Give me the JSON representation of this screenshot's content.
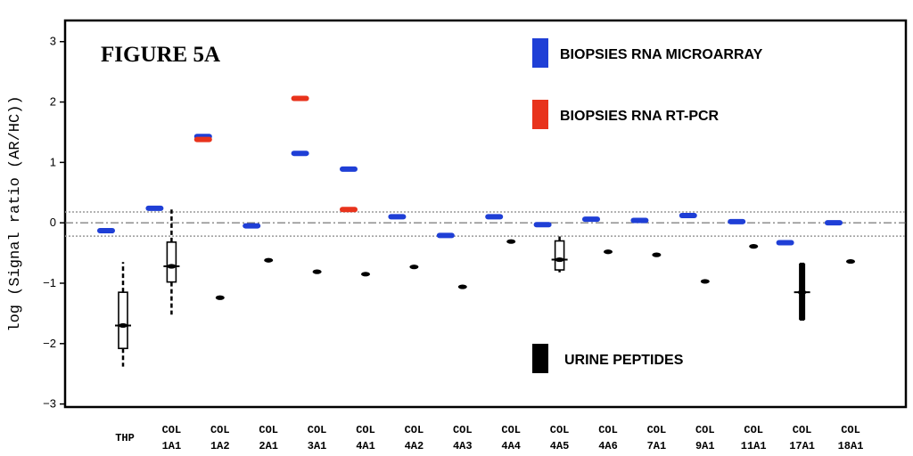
{
  "chart_data": {
    "type": "scatter",
    "title": "FIGURE 5A",
    "ylabel": "log (Signal ratio (AR/HC))",
    "xlabel": "",
    "ylim": [
      -3.05,
      3.35
    ],
    "yticks": [
      3,
      2,
      1,
      0,
      -1,
      -2,
      -3
    ],
    "threshold_lines": [
      0.18,
      0,
      -0.22
    ],
    "categories": [
      [
        "THP",
        ""
      ],
      [
        "COL",
        "1A1"
      ],
      [
        "COL",
        "1A2"
      ],
      [
        "COL",
        "2A1"
      ],
      [
        "COL",
        "3A1"
      ],
      [
        "COL",
        "4A1"
      ],
      [
        "COL",
        "4A2"
      ],
      [
        "COL",
        "4A3"
      ],
      [
        "COL",
        "4A4"
      ],
      [
        "COL",
        "4A5"
      ],
      [
        "COL",
        "4A6"
      ],
      [
        "COL",
        "7A1"
      ],
      [
        "COL",
        "9A1"
      ],
      [
        "COL",
        "11A1"
      ],
      [
        "COL",
        "17A1"
      ],
      [
        "COL",
        "18A1"
      ]
    ],
    "series": [
      {
        "name": "BIOPSIES RNA MICROARRAY",
        "color": "#1f3fd6",
        "values": [
          -0.13,
          0.24,
          1.43,
          -0.05,
          1.15,
          0.89,
          0.1,
          -0.21,
          0.1,
          -0.03,
          0.06,
          0.04,
          0.12,
          0.02,
          -0.33,
          0.0
        ]
      },
      {
        "name": "BIOPSIES RNA RT-PCR",
        "color": "#e8331c",
        "values": [
          null,
          null,
          1.38,
          null,
          2.06,
          0.22,
          null,
          null,
          null,
          null,
          null,
          null,
          null,
          null,
          null,
          null
        ]
      },
      {
        "name": "URINE PEPTIDES",
        "color": "#000000",
        "values": [
          -1.7,
          -0.72,
          -1.24,
          -0.62,
          -0.81,
          -0.85,
          -0.73,
          -1.06,
          -0.31,
          -0.61,
          -0.48,
          -0.53,
          -0.97,
          -0.39,
          -1.15,
          -0.64
        ]
      }
    ],
    "boxplots": [
      {
        "category_index": 0,
        "q1": -2.08,
        "q3": -1.15,
        "median": -1.7,
        "whisker_low": -2.38,
        "whisker_high": -0.65,
        "style": "dashed"
      },
      {
        "category_index": 1,
        "q1": -0.98,
        "q3": -0.32,
        "median": -0.72,
        "whisker_low": -1.52,
        "whisker_high": 0.22,
        "style": "dashed"
      },
      {
        "category_index": 9,
        "q1": -0.78,
        "q3": -0.3,
        "median": -0.61,
        "whisker_low": -0.82,
        "whisker_high": -0.22,
        "style": "dashed"
      },
      {
        "category_index": 14,
        "q1": -1.6,
        "q3": -0.68,
        "median": -1.15,
        "whisker_low": -1.62,
        "whisker_high": -0.66,
        "style": "solid"
      }
    ],
    "legend": {
      "placement": "right",
      "entries": [
        "BIOPSIES RNA MICROARRAY",
        "BIOPSIES RNA RT-PCR",
        "URINE PEPTIDES"
      ]
    }
  }
}
